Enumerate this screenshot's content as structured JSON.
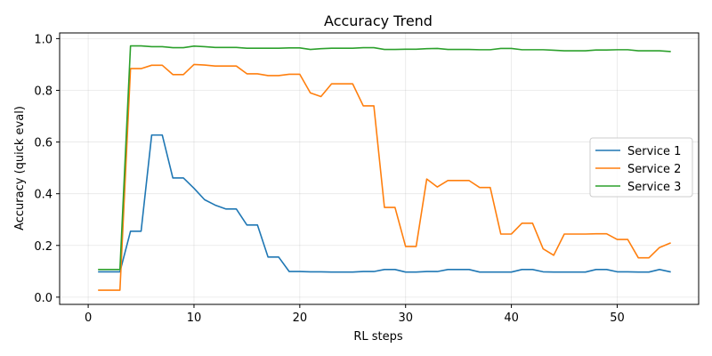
{
  "chart_data": {
    "type": "line",
    "title": "Accuracy Trend",
    "xlabel": "RL steps",
    "ylabel": "Accuracy (quick eval)",
    "xlim": [
      -2.7,
      57.7
    ],
    "ylim": [
      -0.028,
      1.022
    ],
    "xticks": [
      0,
      10,
      20,
      30,
      40,
      50
    ],
    "yticks": [
      0.0,
      0.2,
      0.4,
      0.6,
      0.8,
      1.0
    ],
    "xtick_labels": [
      "0",
      "10",
      "20",
      "30",
      "40",
      "50"
    ],
    "ytick_labels": [
      "0.0",
      "0.2",
      "0.4",
      "0.6",
      "0.8",
      "1.0"
    ],
    "grid": true,
    "legend_position": "center-right",
    "x": [
      1,
      2,
      3,
      4,
      5,
      6,
      7,
      8,
      9,
      10,
      11,
      12,
      13,
      14,
      15,
      16,
      17,
      18,
      19,
      20,
      21,
      22,
      23,
      24,
      25,
      26,
      27,
      28,
      29,
      30,
      31,
      32,
      33,
      34,
      35,
      36,
      37,
      38,
      39,
      40,
      41,
      42,
      43,
      44,
      45,
      46,
      47,
      48,
      49,
      50,
      51,
      52,
      53,
      54,
      55
    ],
    "series": [
      {
        "name": "Service 1",
        "color": "#1f77b4",
        "values": [
          0.098,
          0.098,
          0.098,
          0.255,
          0.255,
          0.627,
          0.627,
          0.461,
          0.461,
          0.421,
          0.377,
          0.356,
          0.341,
          0.341,
          0.279,
          0.279,
          0.155,
          0.155,
          0.099,
          0.099,
          0.098,
          0.098,
          0.097,
          0.097,
          0.097,
          0.099,
          0.099,
          0.107,
          0.107,
          0.097,
          0.097,
          0.099,
          0.099,
          0.107,
          0.107,
          0.107,
          0.097,
          0.097,
          0.097,
          0.097,
          0.107,
          0.107,
          0.098,
          0.097,
          0.097,
          0.097,
          0.097,
          0.107,
          0.107,
          0.098,
          0.098,
          0.097,
          0.097,
          0.107,
          0.098
        ]
      },
      {
        "name": "Service 2",
        "color": "#ff7f0e",
        "values": [
          0.027,
          0.027,
          0.027,
          0.884,
          0.884,
          0.897,
          0.897,
          0.861,
          0.861,
          0.9,
          0.898,
          0.894,
          0.894,
          0.894,
          0.864,
          0.864,
          0.857,
          0.857,
          0.862,
          0.862,
          0.79,
          0.776,
          0.825,
          0.825,
          0.825,
          0.74,
          0.74,
          0.347,
          0.347,
          0.196,
          0.196,
          0.457,
          0.426,
          0.451,
          0.451,
          0.451,
          0.424,
          0.424,
          0.244,
          0.244,
          0.286,
          0.286,
          0.187,
          0.162,
          0.244,
          0.244,
          0.244,
          0.245,
          0.245,
          0.223,
          0.223,
          0.152,
          0.152,
          0.192,
          0.209
        ]
      },
      {
        "name": "Service 3",
        "color": "#2ca02c",
        "values": [
          0.107,
          0.107,
          0.107,
          0.972,
          0.972,
          0.969,
          0.969,
          0.965,
          0.965,
          0.971,
          0.969,
          0.966,
          0.966,
          0.966,
          0.963,
          0.963,
          0.963,
          0.963,
          0.964,
          0.964,
          0.958,
          0.961,
          0.963,
          0.963,
          0.963,
          0.965,
          0.965,
          0.958,
          0.958,
          0.959,
          0.959,
          0.961,
          0.962,
          0.958,
          0.958,
          0.958,
          0.957,
          0.957,
          0.962,
          0.962,
          0.957,
          0.957,
          0.957,
          0.955,
          0.953,
          0.953,
          0.953,
          0.956,
          0.956,
          0.957,
          0.957,
          0.953,
          0.953,
          0.953,
          0.95
        ]
      }
    ]
  }
}
